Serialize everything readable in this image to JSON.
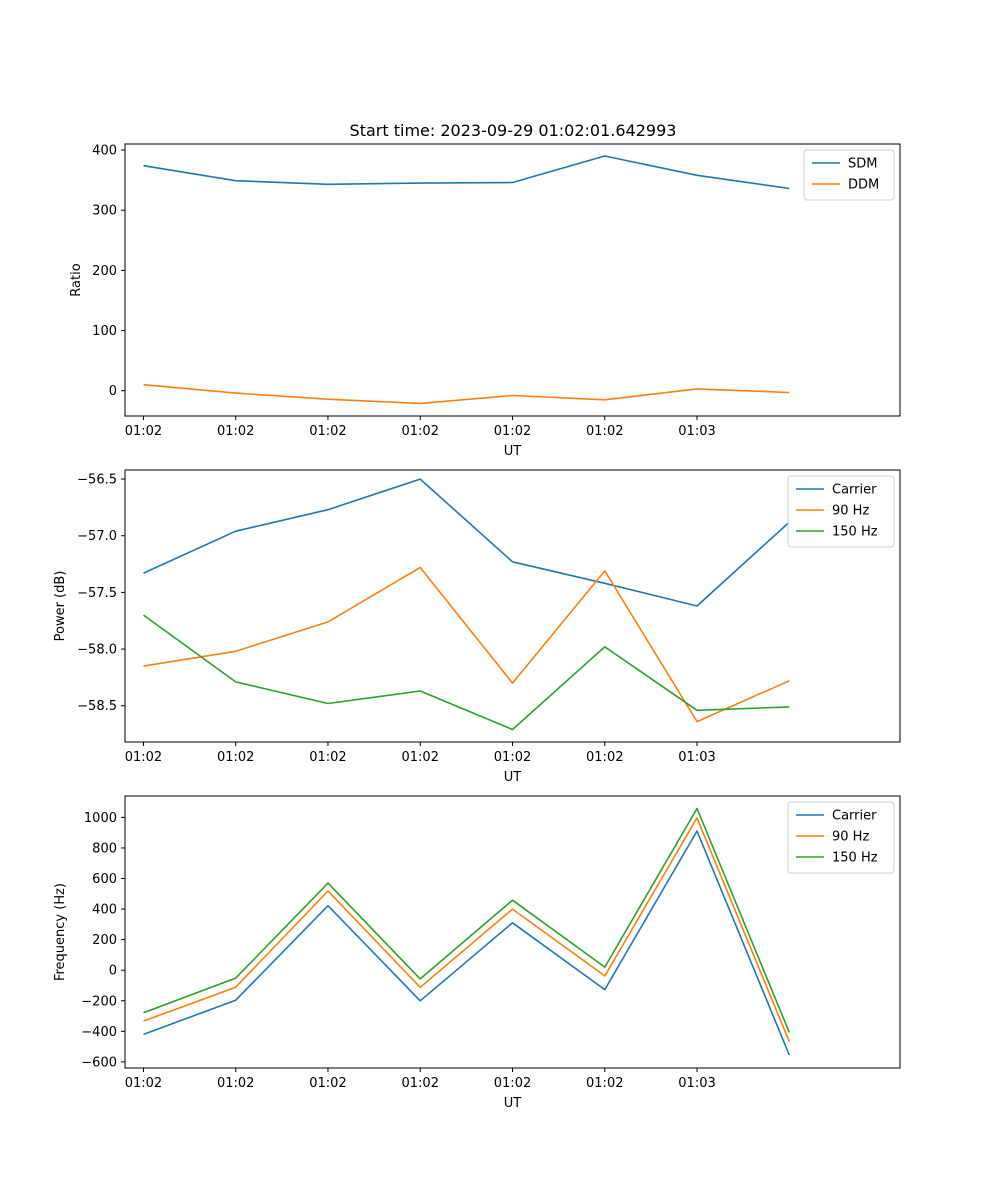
{
  "figure_title": "Start time: 2023-09-29 01:02:01.642993",
  "colors": {
    "blue": "#1f77b4",
    "orange": "#ff7f0e",
    "green": "#2ca02c"
  },
  "chart_data": [
    {
      "type": "line",
      "xlabel": "UT",
      "ylabel": "Ratio",
      "x": [
        1,
        2,
        3,
        4,
        5,
        6,
        7,
        8
      ],
      "xlim": [
        0.8,
        9.2
      ],
      "xticks": [
        1,
        2,
        3,
        4,
        5,
        6,
        7
      ],
      "xtick_labels": [
        "01:02",
        "01:02",
        "01:02",
        "01:02",
        "01:02",
        "01:02",
        "01:03"
      ],
      "ylim": [
        -42,
        410
      ],
      "yticks": [
        0,
        100,
        200,
        300,
        400
      ],
      "ytick_labels": [
        "0",
        "100",
        "200",
        "300",
        "400"
      ],
      "legend_position": "top-right",
      "series": [
        {
          "name": "SDM",
          "color": "#1f77b4",
          "values": [
            374,
            349,
            343,
            345,
            346,
            390,
            358,
            336
          ]
        },
        {
          "name": "DDM",
          "color": "#ff7f0e",
          "values": [
            10,
            -4,
            -14,
            -21,
            -8,
            -15,
            3,
            -3
          ]
        }
      ]
    },
    {
      "type": "line",
      "xlabel": "UT",
      "ylabel": "Power (dB)",
      "x": [
        1,
        2,
        3,
        4,
        5,
        6,
        7,
        8
      ],
      "xlim": [
        0.8,
        9.2
      ],
      "xticks": [
        1,
        2,
        3,
        4,
        5,
        6,
        7
      ],
      "xtick_labels": [
        "01:02",
        "01:02",
        "01:02",
        "01:02",
        "01:02",
        "01:02",
        "01:03"
      ],
      "ylim": [
        -58.82,
        -56.42
      ],
      "yticks": [
        -58.5,
        -58.0,
        -57.5,
        -57.0,
        -56.5
      ],
      "ytick_labels": [
        "−58.5",
        "−58.0",
        "−57.5",
        "−57.0",
        "−56.5"
      ],
      "legend_position": "top-right",
      "series": [
        {
          "name": "Carrier",
          "color": "#1f77b4",
          "values": [
            -57.33,
            -56.96,
            -56.77,
            -56.5,
            -57.23,
            -57.42,
            -57.62,
            -56.88
          ]
        },
        {
          "name": "90 Hz",
          "color": "#ff7f0e",
          "values": [
            -58.15,
            -58.02,
            -57.76,
            -57.28,
            -58.3,
            -57.31,
            -58.64,
            -58.28
          ]
        },
        {
          "name": "150 Hz",
          "color": "#2ca02c",
          "values": [
            -57.7,
            -58.29,
            -58.48,
            -58.37,
            -58.71,
            -57.98,
            -58.54,
            -58.51
          ]
        }
      ]
    },
    {
      "type": "line",
      "xlabel": "UT",
      "ylabel": "Frequency (Hz)",
      "x": [
        1,
        2,
        3,
        4,
        5,
        6,
        7,
        8
      ],
      "xlim": [
        0.8,
        9.2
      ],
      "xticks": [
        1,
        2,
        3,
        4,
        5,
        6,
        7
      ],
      "xtick_labels": [
        "01:02",
        "01:02",
        "01:02",
        "01:02",
        "01:02",
        "01:02",
        "01:03"
      ],
      "ylim": [
        -640,
        1140
      ],
      "yticks": [
        -600,
        -400,
        -200,
        0,
        200,
        400,
        600,
        800,
        1000
      ],
      "ytick_labels": [
        "−600",
        "−400",
        "−200",
        "0",
        "200",
        "400",
        "600",
        "800",
        "1000"
      ],
      "legend_position": "top-right",
      "series": [
        {
          "name": "Carrier",
          "color": "#1f77b4",
          "values": [
            -420,
            -196,
            422,
            -200,
            310,
            -127,
            910,
            -555
          ]
        },
        {
          "name": "90 Hz",
          "color": "#ff7f0e",
          "values": [
            -333,
            -111,
            518,
            -112,
            400,
            -37,
            997,
            -467
          ]
        },
        {
          "name": "150 Hz",
          "color": "#2ca02c",
          "values": [
            -279,
            -52,
            570,
            -57,
            458,
            20,
            1058,
            -408
          ]
        }
      ]
    }
  ]
}
